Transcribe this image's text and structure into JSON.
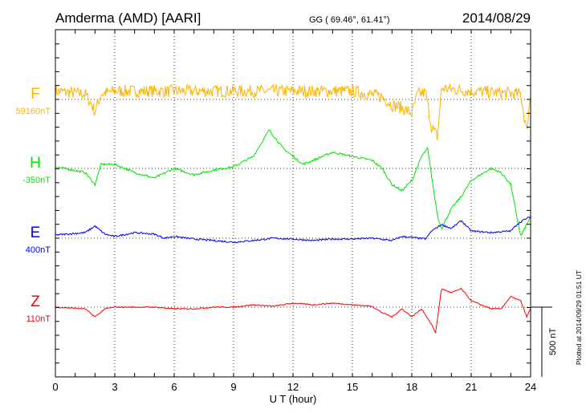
{
  "header": {
    "station": "Amderma (AMD)  [AARI]",
    "coords": "GG ( 69.46°,  61.41°)",
    "date": "2014/08/29"
  },
  "footer": {
    "plotted": "Plotted at 2014/09/29 01:51  UT",
    "scale_label": "500 nT"
  },
  "chart_data": {
    "type": "line",
    "title": "Amderma (AMD)  [AARI]",
    "xlabel": "U T (hour)",
    "ylabel": "",
    "xlim": [
      0,
      24
    ],
    "x_ticks": [
      0,
      3,
      6,
      9,
      12,
      15,
      18,
      21,
      24
    ],
    "x_tick_labels": [
      "0",
      "3",
      "6",
      "9",
      "12",
      "15",
      "18",
      "21",
      "24"
    ],
    "y_tick_interval_nT": 100,
    "scale_bar_nT": 500,
    "grid": true,
    "series": [
      {
        "name": "F",
        "baseline_label": "59160nT",
        "color": "#ffb400",
        "noise_nT": 45,
        "x": [
          0,
          1.5,
          1.8,
          2.0,
          2.3,
          3,
          6,
          9,
          12,
          15,
          16.5,
          17,
          17.5,
          18,
          18.3,
          18.7,
          19,
          19.3,
          19.5,
          21,
          23.5,
          23.8,
          24
        ],
        "values": [
          60,
          40,
          -30,
          -90,
          40,
          60,
          60,
          60,
          60,
          60,
          20,
          -40,
          -60,
          -100,
          40,
          50,
          -200,
          -270,
          80,
          60,
          40,
          -230,
          40
        ]
      },
      {
        "name": "H",
        "baseline_label": "-350nT",
        "color": "#00e600",
        "noise_nT": 8,
        "x": [
          0,
          1.5,
          2,
          2.3,
          3,
          4,
          5,
          6,
          7,
          8,
          9,
          10,
          10.8,
          11.5,
          12,
          12.5,
          13,
          14,
          15,
          16,
          16.5,
          17,
          17.5,
          18,
          18.5,
          18.8,
          19,
          19.3,
          19.5,
          20,
          20.5,
          21,
          22,
          22.5,
          23,
          23.3,
          23.5,
          24
        ],
        "values": [
          12,
          -29,
          -116,
          29,
          29,
          -29,
          -70,
          0,
          -46,
          -12,
          12,
          87,
          277,
          145,
          87,
          29,
          58,
          116,
          87,
          58,
          0,
          -116,
          -162,
          -87,
          87,
          145,
          -58,
          -347,
          -434,
          -289,
          -202,
          -87,
          0,
          -29,
          -116,
          -347,
          -491,
          -347
        ]
      },
      {
        "name": "E",
        "baseline_label": "400nT",
        "color": "#0000ff",
        "noise_nT": 6,
        "x": [
          0,
          1.5,
          2,
          2.5,
          3,
          4,
          5,
          5.5,
          6,
          7,
          8,
          9,
          10,
          11,
          12,
          13,
          14,
          15,
          16,
          17,
          17.5,
          18,
          18.7,
          19,
          19.5,
          20,
          20.5,
          21,
          22,
          23,
          23.3,
          23.6,
          24
        ],
        "values": [
          23,
          40,
          87,
          29,
          12,
          40,
          29,
          0,
          12,
          -6,
          -17,
          -29,
          -17,
          0,
          -6,
          -17,
          -6,
          -6,
          0,
          -17,
          12,
          6,
          -6,
          52,
          98,
          70,
          127,
          52,
          40,
          52,
          98,
          127,
          156
        ]
      },
      {
        "name": "Z",
        "baseline_label": "110nT",
        "color": "#ff0000",
        "noise_nT": 4,
        "x": [
          0,
          1.5,
          2,
          2.5,
          3,
          5,
          6,
          7,
          8,
          9,
          10,
          11,
          12,
          13,
          14,
          15,
          16,
          16.5,
          17,
          17.5,
          18,
          18.5,
          19,
          19.2,
          19.5,
          20,
          20.5,
          21,
          21.5,
          22,
          22.5,
          23,
          23.5,
          23.8,
          24
        ],
        "values": [
          0,
          -12,
          -70,
          -12,
          0,
          0,
          -12,
          -12,
          0,
          0,
          17,
          6,
          29,
          17,
          29,
          17,
          6,
          -40,
          -70,
          -12,
          -70,
          -12,
          -127,
          -185,
          133,
          104,
          133,
          46,
          17,
          -12,
          -12,
          75,
          46,
          -70,
          -12
        ]
      }
    ]
  }
}
